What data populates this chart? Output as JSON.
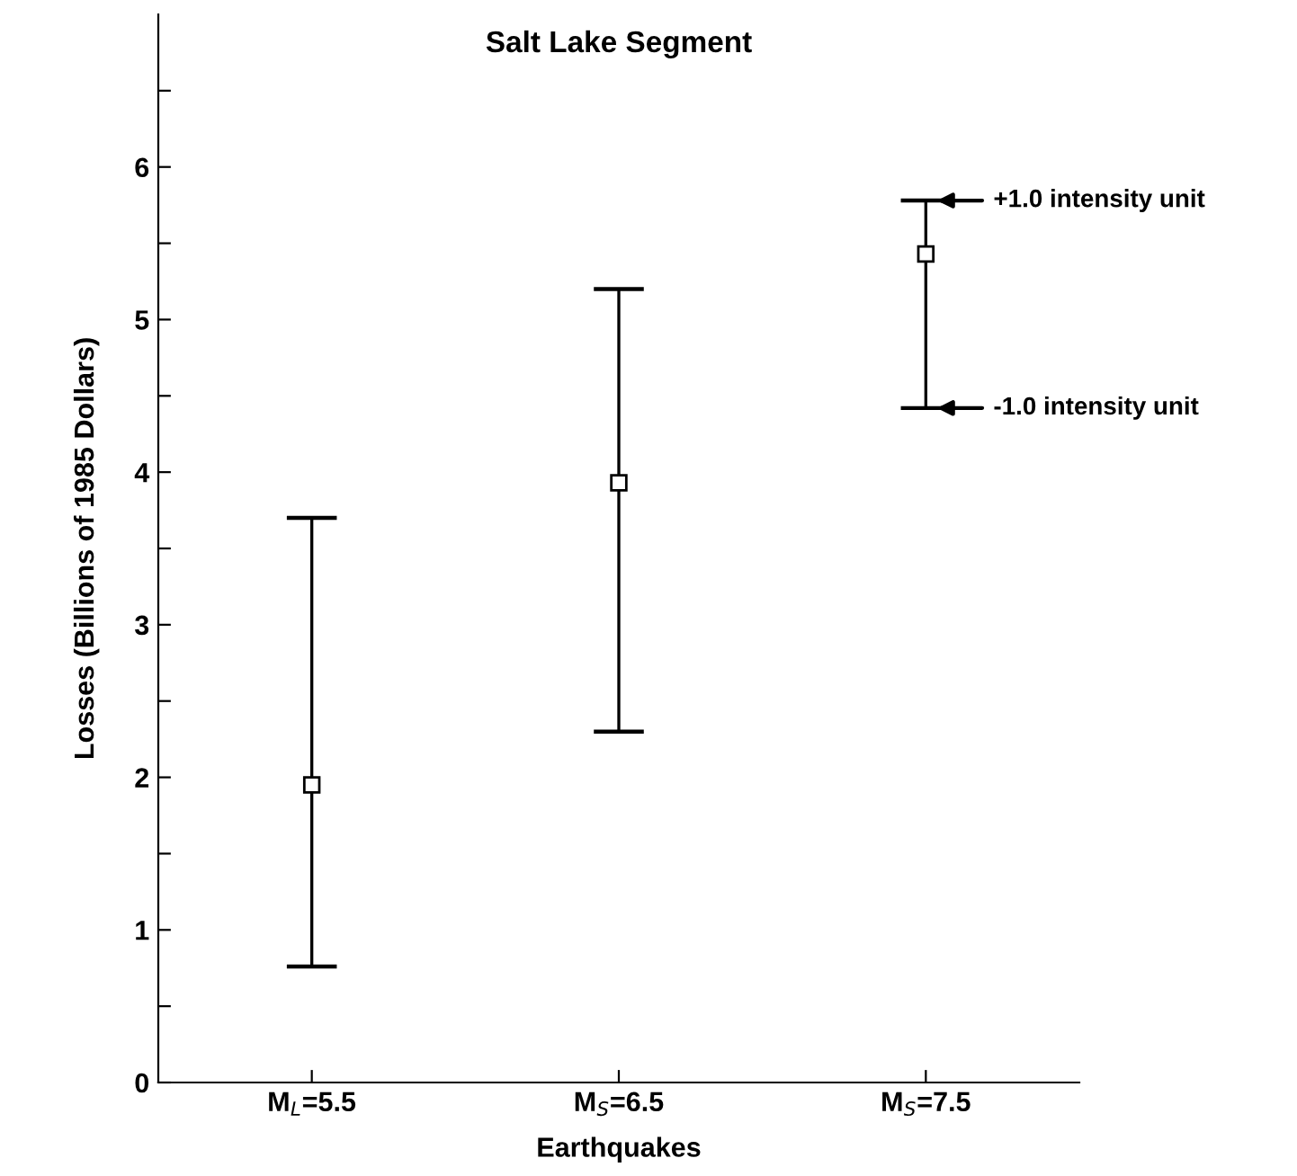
{
  "chart_data": {
    "type": "scatter",
    "title": "Salt Lake Segment",
    "xlabel": "Earthquakes",
    "ylabel": "Losses (Billions of 1985 Dollars)",
    "categories": [
      "M$_{L}$=5.5",
      "M$_{S}$=6.5",
      "M$_{S}$=7.5"
    ],
    "values": [
      1.95,
      3.93,
      5.43
    ],
    "errors": [
      [
        0.76,
        3.7
      ],
      [
        2.3,
        5.2
      ],
      [
        4.42,
        5.78
      ]
    ],
    "color": "#000000",
    "marker": "square",
    "ylim": [
      0,
      7
    ],
    "yticks": [
      0,
      {
        "value": 0.5,
        "label": null
      },
      1,
      {
        "value": 1.5,
        "label": null
      },
      2,
      {
        "value": 2.5,
        "label": null
      },
      3,
      {
        "value": 3.5,
        "label": null
      },
      4,
      {
        "value": 4.5,
        "label": null
      },
      5,
      {
        "value": 5.5,
        "label": null
      },
      6,
      {
        "value": 6.5,
        "label": null
      }
    ],
    "grid": false,
    "annotations": [
      {
        "text": "+1.0 intensity unit",
        "x": "M$_{S}$=7.5",
        "y": 5.78
      },
      {
        "text": "-1.0 intensity unit",
        "x": "M$_{S}$=7.5",
        "y": 4.42
      }
    ]
  }
}
